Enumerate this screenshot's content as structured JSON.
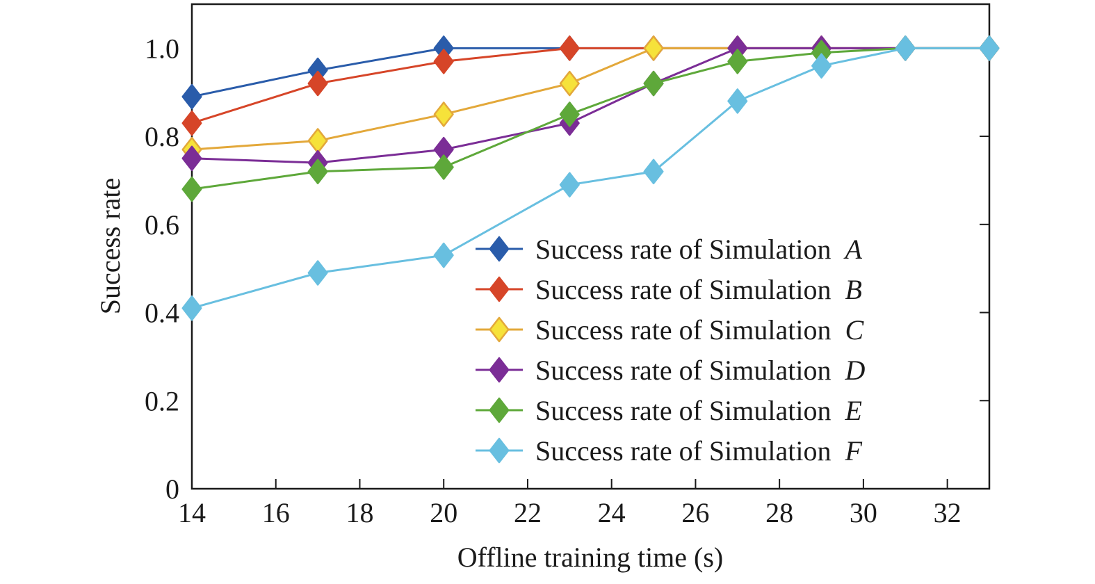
{
  "chart_data": {
    "type": "line",
    "xlabel": "Offline training time (s)",
    "ylabel": "Success rate",
    "xlim": [
      14,
      33
    ],
    "ylim": [
      0,
      1.1
    ],
    "xticks": [
      14,
      16,
      18,
      20,
      22,
      24,
      26,
      28,
      30,
      32
    ],
    "xtick_labels": [
      "14",
      "16",
      "18",
      "20",
      "22",
      "24",
      "26",
      "28",
      "30",
      "32"
    ],
    "yticks": [
      0,
      0.2,
      0.4,
      0.6,
      0.8,
      1.0
    ],
    "ytick_labels": [
      "0",
      "0.2",
      "0.4",
      "0.6",
      "0.8",
      "1.0"
    ],
    "grid": false,
    "legend_position": "bottom-right",
    "x": [
      14,
      17,
      20,
      23,
      25,
      27,
      29,
      31,
      33
    ],
    "series": [
      {
        "name": "Success rate of Simulation A",
        "legend_prefix": "Success rate of Simulation ",
        "legend_letter": "A",
        "color": "#2a5caa",
        "values": [
          0.89,
          0.95,
          1.0,
          1.0,
          1.0,
          1.0,
          1.0,
          1.0,
          1.0
        ]
      },
      {
        "name": "Success rate of Simulation B",
        "legend_prefix": "Success rate of Simulation ",
        "legend_letter": "B",
        "color": "#d64528",
        "values": [
          0.83,
          0.92,
          0.97,
          1.0,
          1.0,
          1.0,
          1.0,
          1.0,
          1.0
        ]
      },
      {
        "name": "Success rate of Simulation C",
        "legend_prefix": "Success rate of Simulation ",
        "legend_letter": "C",
        "color": "#e3a83a",
        "marker_fill": "#f6e23a",
        "values": [
          0.77,
          0.79,
          0.85,
          0.92,
          1.0,
          1.0,
          1.0,
          1.0,
          1.0
        ]
      },
      {
        "name": "Success rate of Simulation D",
        "legend_prefix": "Success rate of Simulation ",
        "legend_letter": "D",
        "color": "#7b2d96",
        "values": [
          0.75,
          0.74,
          0.77,
          0.83,
          0.92,
          1.0,
          1.0,
          1.0,
          1.0
        ]
      },
      {
        "name": "Success rate of Simulation E",
        "legend_prefix": "Success rate of Simulation ",
        "legend_letter": "E",
        "color": "#5ea83a",
        "values": [
          0.68,
          0.72,
          0.73,
          0.85,
          0.92,
          0.97,
          0.99,
          1.0,
          1.0
        ]
      },
      {
        "name": "Success rate of Simulation F",
        "legend_prefix": "Success rate of Simulation ",
        "legend_letter": "F",
        "color": "#68bfe0",
        "values": [
          0.41,
          0.49,
          0.53,
          0.69,
          0.72,
          0.88,
          0.96,
          1.0,
          1.0
        ]
      }
    ]
  }
}
